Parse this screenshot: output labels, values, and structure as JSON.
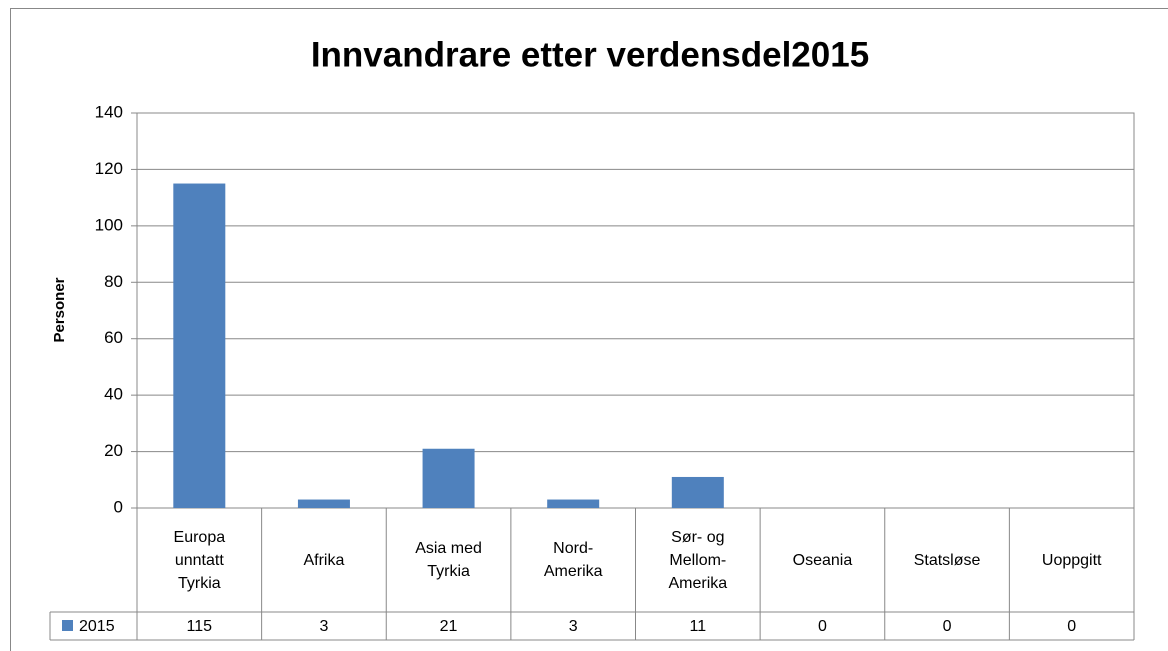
{
  "chart_data": {
    "type": "bar",
    "title": "Innvandrare etter verdensdel2015",
    "y_label": "Personer",
    "categories": [
      "Europa unntatt Tyrkia",
      "Afrika",
      "Asia med Tyrkia",
      "Nord-Amerika",
      "Sør- og Mellom-Amerika",
      "Oseania",
      "Statsløse",
      "Uoppgitt"
    ],
    "series": [
      {
        "name": "2015",
        "color": "#4f81bd",
        "values": [
          115,
          3,
          21,
          3,
          11,
          0,
          0,
          0
        ]
      }
    ],
    "ylim": [
      0,
      140
    ],
    "yticks": [
      0,
      20,
      40,
      60,
      80,
      100,
      120,
      140
    ],
    "grid": true,
    "data_table": true
  }
}
